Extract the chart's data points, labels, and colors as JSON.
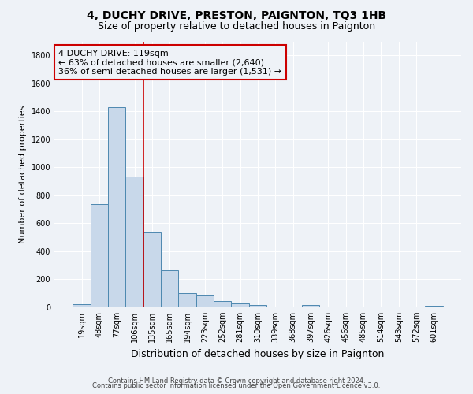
{
  "title": "4, DUCHY DRIVE, PRESTON, PAIGNTON, TQ3 1HB",
  "subtitle": "Size of property relative to detached houses in Paignton",
  "xlabel": "Distribution of detached houses by size in Paignton",
  "ylabel": "Number of detached properties",
  "footer_line1": "Contains HM Land Registry data © Crown copyright and database right 2024.",
  "footer_line2": "Contains public sector information licensed under the Open Government Licence v3.0.",
  "bar_labels": [
    "19sqm",
    "48sqm",
    "77sqm",
    "106sqm",
    "135sqm",
    "165sqm",
    "194sqm",
    "223sqm",
    "252sqm",
    "281sqm",
    "310sqm",
    "339sqm",
    "368sqm",
    "397sqm",
    "426sqm",
    "456sqm",
    "485sqm",
    "514sqm",
    "543sqm",
    "572sqm",
    "601sqm"
  ],
  "bar_values": [
    20,
    740,
    1430,
    935,
    535,
    265,
    104,
    88,
    45,
    27,
    18,
    7,
    3,
    15,
    3,
    2,
    3,
    0,
    0,
    0,
    12
  ],
  "bar_color": "#c8d8ea",
  "bar_edgecolor": "#4d88b0",
  "annotation_line1": "4 DUCHY DRIVE: 119sqm",
  "annotation_line2": "← 63% of detached houses are smaller (2,640)",
  "annotation_line3": "36% of semi-detached houses are larger (1,531) →",
  "annotation_box_edgecolor": "#cc0000",
  "vline_x_index": 3,
  "vline_color": "#cc0000",
  "ylim": [
    0,
    1900
  ],
  "yticks": [
    0,
    200,
    400,
    600,
    800,
    1000,
    1200,
    1400,
    1600,
    1800
  ],
  "background_color": "#eef2f7",
  "plot_background": "#eef2f7",
  "grid_color": "#ffffff",
  "title_fontsize": 10,
  "subtitle_fontsize": 9,
  "ylabel_fontsize": 8,
  "xlabel_fontsize": 9,
  "tick_fontsize": 7,
  "annotation_fontsize": 8,
  "footer_fontsize": 6
}
